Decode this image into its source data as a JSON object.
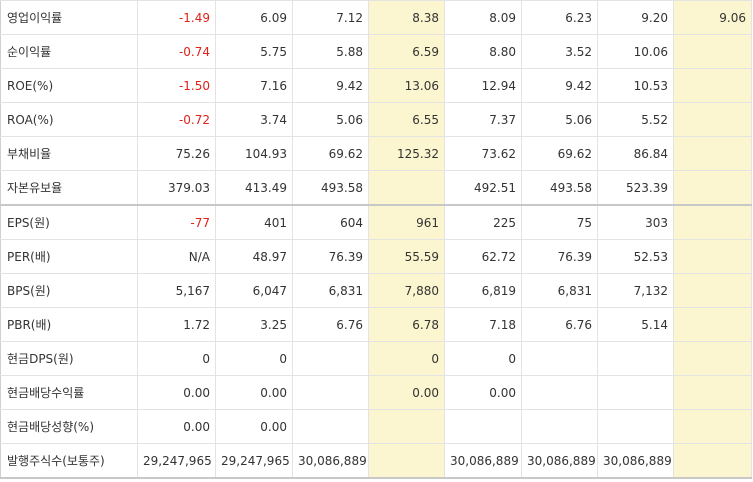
{
  "rows": [
    {
      "label": "영업이익률",
      "values": [
        "-1.49",
        "6.09",
        "7.12",
        "8.38",
        "8.09",
        "6.23",
        "9.20",
        "9.06"
      ],
      "negative": [
        true,
        false,
        false,
        false,
        false,
        false,
        false,
        false
      ]
    },
    {
      "label": "순이익률",
      "values": [
        "-0.74",
        "5.75",
        "5.88",
        "6.59",
        "8.80",
        "3.52",
        "10.06",
        ""
      ],
      "negative": [
        true,
        false,
        false,
        false,
        false,
        false,
        false,
        false
      ]
    },
    {
      "label": "ROE(%)",
      "values": [
        "-1.50",
        "7.16",
        "9.42",
        "13.06",
        "12.94",
        "9.42",
        "10.53",
        ""
      ],
      "negative": [
        true,
        false,
        false,
        false,
        false,
        false,
        false,
        false
      ]
    },
    {
      "label": "ROA(%)",
      "values": [
        "-0.72",
        "3.74",
        "5.06",
        "6.55",
        "7.37",
        "5.06",
        "5.52",
        ""
      ],
      "negative": [
        true,
        false,
        false,
        false,
        false,
        false,
        false,
        false
      ]
    },
    {
      "label": "부채비율",
      "values": [
        "75.26",
        "104.93",
        "69.62",
        "125.32",
        "73.62",
        "69.62",
        "86.84",
        ""
      ],
      "negative": [
        false,
        false,
        false,
        false,
        false,
        false,
        false,
        false
      ]
    },
    {
      "label": "자본유보율",
      "values": [
        "379.03",
        "413.49",
        "493.58",
        "",
        "492.51",
        "493.58",
        "523.39",
        ""
      ],
      "negative": [
        false,
        false,
        false,
        false,
        false,
        false,
        false,
        false
      ]
    },
    {
      "label": "EPS(원)",
      "values": [
        "-77",
        "401",
        "604",
        "961",
        "225",
        "75",
        "303",
        ""
      ],
      "negative": [
        true,
        false,
        false,
        false,
        false,
        false,
        false,
        false
      ]
    },
    {
      "label": "PER(배)",
      "values": [
        "N/A",
        "48.97",
        "76.39",
        "55.59",
        "62.72",
        "76.39",
        "52.53",
        ""
      ],
      "negative": [
        false,
        false,
        false,
        false,
        false,
        false,
        false,
        false
      ]
    },
    {
      "label": "BPS(원)",
      "values": [
        "5,167",
        "6,047",
        "6,831",
        "7,880",
        "6,819",
        "6,831",
        "7,132",
        ""
      ],
      "negative": [
        false,
        false,
        false,
        false,
        false,
        false,
        false,
        false
      ]
    },
    {
      "label": "PBR(배)",
      "values": [
        "1.72",
        "3.25",
        "6.76",
        "6.78",
        "7.18",
        "6.76",
        "5.14",
        ""
      ],
      "negative": [
        false,
        false,
        false,
        false,
        false,
        false,
        false,
        false
      ]
    },
    {
      "label": "현금DPS(원)",
      "values": [
        "0",
        "0",
        "",
        "0",
        "0",
        "",
        "",
        ""
      ],
      "negative": [
        false,
        false,
        false,
        false,
        false,
        false,
        false,
        false
      ]
    },
    {
      "label": "현금배당수익률",
      "values": [
        "0.00",
        "0.00",
        "",
        "0.00",
        "0.00",
        "",
        "",
        ""
      ],
      "negative": [
        false,
        false,
        false,
        false,
        false,
        false,
        false,
        false
      ]
    },
    {
      "label": "현금배당성향(%)",
      "values": [
        "0.00",
        "0.00",
        "",
        "",
        "",
        "",
        "",
        ""
      ],
      "negative": [
        false,
        false,
        false,
        false,
        false,
        false,
        false,
        false
      ]
    },
    {
      "label": "발행주식수(보통주)",
      "values": [
        "29,247,965",
        "29,247,965",
        "30,086,889",
        "",
        "30,086,889",
        "30,086,889",
        "30,086,889",
        ""
      ],
      "negative": [
        false,
        false,
        false,
        false,
        false,
        false,
        false,
        false
      ]
    }
  ],
  "colors": {
    "highlight": "#fbf6cf",
    "negative": "#e0221b",
    "text": "#333333",
    "border": "#e3e3e3"
  }
}
